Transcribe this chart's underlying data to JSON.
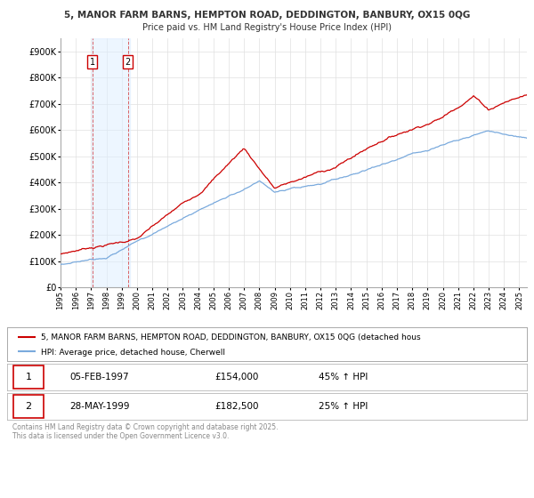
{
  "title_line1": "5, MANOR FARM BARNS, HEMPTON ROAD, DEDDINGTON, BANBURY, OX15 0QG",
  "title_line2": "Price paid vs. HM Land Registry's House Price Index (HPI)",
  "ylim": [
    0,
    950000
  ],
  "yticks": [
    0,
    100000,
    200000,
    300000,
    400000,
    500000,
    600000,
    700000,
    800000,
    900000
  ],
  "ytick_labels": [
    "£0",
    "£100K",
    "£200K",
    "£300K",
    "£400K",
    "£500K",
    "£600K",
    "£700K",
    "£800K",
    "£900K"
  ],
  "purchase1_x": 1997.09,
  "purchase1_price": 154000,
  "purchase2_x": 1999.4,
  "purchase2_price": 182500,
  "legend_line1": "5, MANOR FARM BARNS, HEMPTON ROAD, DEDDINGTON, BANBURY, OX15 0QG (detached hous",
  "legend_line2": "HPI: Average price, detached house, Cherwell",
  "table_row1": [
    "1",
    "05-FEB-1997",
    "£154,000",
    "45% ↑ HPI"
  ],
  "table_row2": [
    "2",
    "28-MAY-1999",
    "£182,500",
    "25% ↑ HPI"
  ],
  "footer": "Contains HM Land Registry data © Crown copyright and database right 2025.\nThis data is licensed under the Open Government Licence v3.0.",
  "property_color": "#cc0000",
  "hpi_color": "#7aaadd",
  "background_color": "#ffffff",
  "grid_color": "#e0e0e0",
  "highlight_color": "#ddeeff",
  "border_color": "#aaaaaa",
  "text_color": "#333333",
  "footer_color": "#888888",
  "xtick_years": [
    1995,
    1996,
    1997,
    1998,
    1999,
    2000,
    2001,
    2002,
    2003,
    2004,
    2005,
    2006,
    2007,
    2008,
    2009,
    2010,
    2011,
    2012,
    2013,
    2014,
    2015,
    2016,
    2017,
    2018,
    2019,
    2020,
    2021,
    2022,
    2023,
    2024,
    2025
  ]
}
